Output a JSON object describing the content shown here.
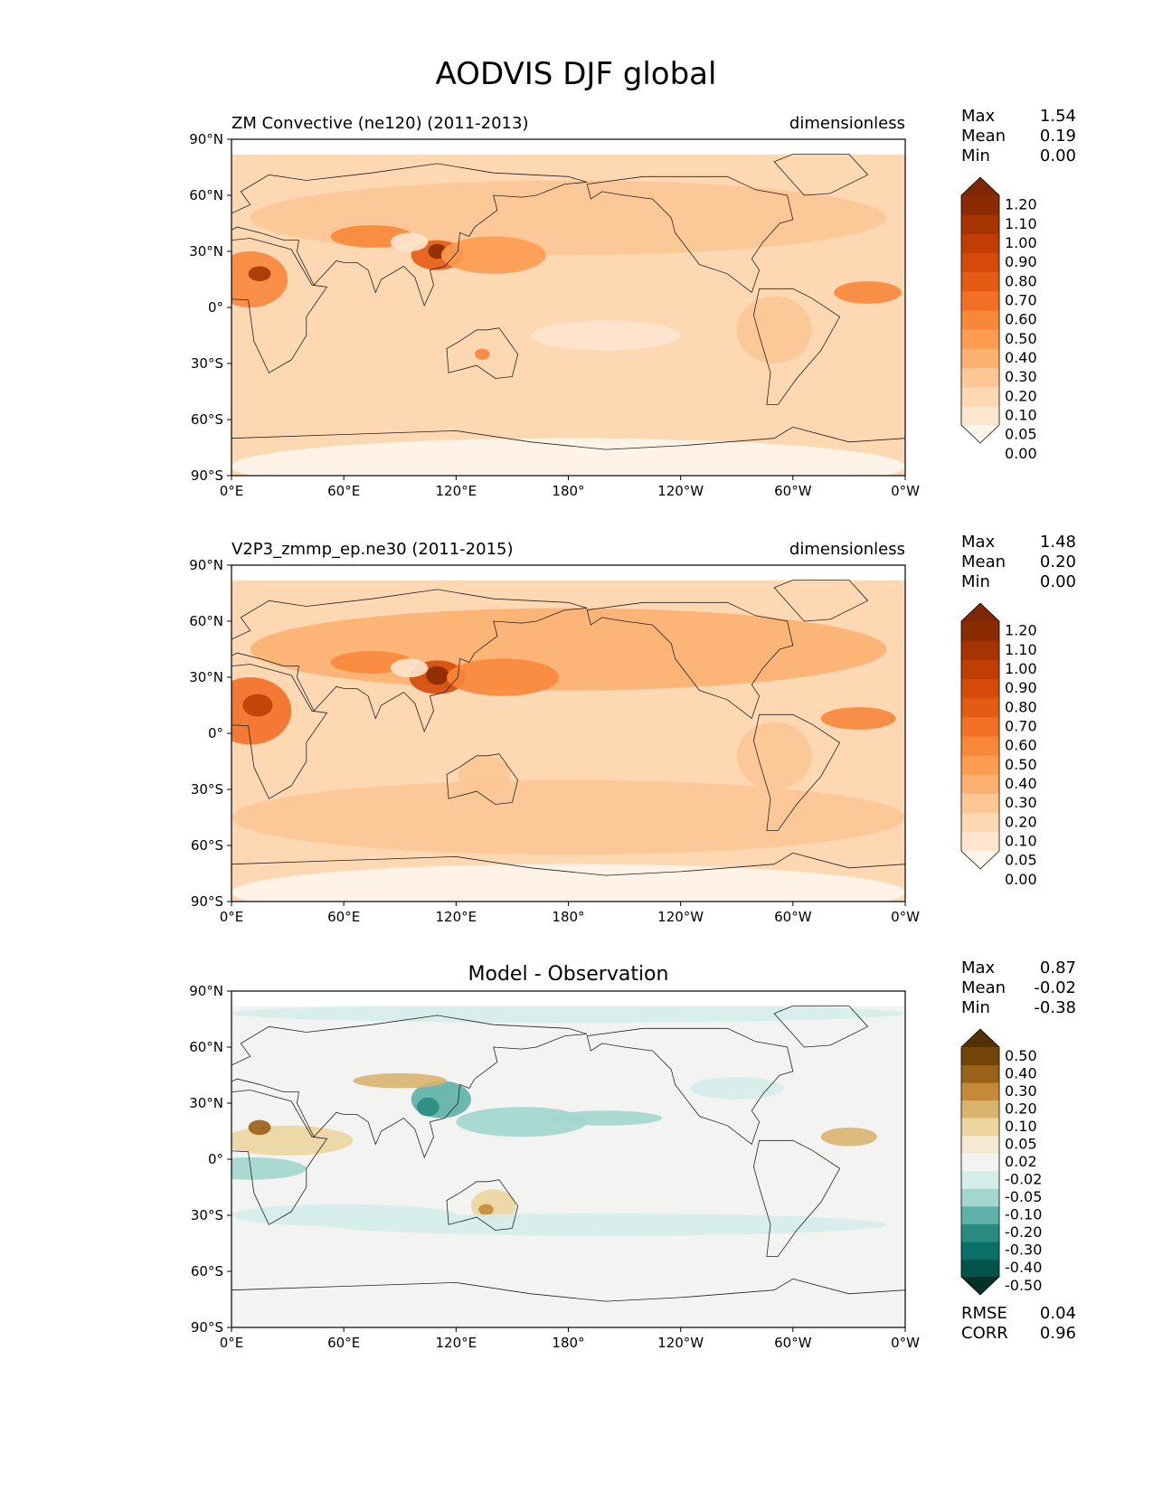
{
  "figure": {
    "title": "AODVIS DJF global"
  },
  "chart_data": [
    {
      "type": "heatmap",
      "title": "ZM Convective (ne120) (2011-2013)",
      "units": "dimensionless",
      "stats": [
        {
          "label": "Max",
          "value": "1.54"
        },
        {
          "label": "Mean",
          "value": "0.19"
        },
        {
          "label": "Min",
          "value": "0.00"
        }
      ],
      "xlim": [
        0,
        360
      ],
      "ylim": [
        -90,
        90
      ],
      "x_ticks": [
        "0°E",
        "60°E",
        "120°E",
        "180°",
        "120°W",
        "60°W",
        "0°W"
      ],
      "y_ticks": [
        "90°N",
        "60°N",
        "30°N",
        "0°",
        "30°S",
        "60°S",
        "90°S"
      ],
      "colorbar_levels": [
        "1.20",
        "1.10",
        "1.00",
        "0.90",
        "0.80",
        "0.70",
        "0.60",
        "0.50",
        "0.40",
        "0.30",
        "0.20",
        "0.10",
        "0.05",
        "0.00"
      ],
      "colors": [
        "#fff5eb",
        "#fee6ce",
        "#fdd8b3",
        "#fdc795",
        "#fdb170",
        "#fd9c51",
        "#f8873a",
        "#f26f26",
        "#e45b13",
        "#d54a08",
        "#c03e04",
        "#a63403",
        "#8a2b04",
        "#7f2704"
      ]
    },
    {
      "type": "heatmap",
      "title": "V2P3_zmmp_ep.ne30 (2011-2015)",
      "units": "dimensionless",
      "stats": [
        {
          "label": "Max",
          "value": "1.48"
        },
        {
          "label": "Mean",
          "value": "0.20"
        },
        {
          "label": "Min",
          "value": "0.00"
        }
      ],
      "xlim": [
        0,
        360
      ],
      "ylim": [
        -90,
        90
      ],
      "x_ticks": [
        "0°E",
        "60°E",
        "120°E",
        "180°",
        "120°W",
        "60°W",
        "0°W"
      ],
      "y_ticks": [
        "90°N",
        "60°N",
        "30°N",
        "0°",
        "30°S",
        "60°S",
        "90°S"
      ],
      "colorbar_levels": [
        "1.20",
        "1.10",
        "1.00",
        "0.90",
        "0.80",
        "0.70",
        "0.60",
        "0.50",
        "0.40",
        "0.30",
        "0.20",
        "0.10",
        "0.05",
        "0.00"
      ],
      "colors": [
        "#fff5eb",
        "#fee6ce",
        "#fdd8b3",
        "#fdc795",
        "#fdb170",
        "#fd9c51",
        "#f8873a",
        "#f26f26",
        "#e45b13",
        "#d54a08",
        "#c03e04",
        "#a63403",
        "#8a2b04",
        "#7f2704"
      ]
    },
    {
      "type": "heatmap",
      "title": "Model - Observation",
      "units": "",
      "stats": [
        {
          "label": "Max",
          "value": "0.87"
        },
        {
          "label": "Mean",
          "value": "-0.02"
        },
        {
          "label": "Min",
          "value": "-0.38"
        }
      ],
      "metrics": [
        {
          "label": "RMSE",
          "value": "0.04"
        },
        {
          "label": "CORR",
          "value": "0.96"
        }
      ],
      "xlim": [
        0,
        360
      ],
      "ylim": [
        -90,
        90
      ],
      "x_ticks": [
        "0°E",
        "60°E",
        "120°E",
        "180°",
        "120°W",
        "60°W",
        "0°W"
      ],
      "y_ticks": [
        "90°N",
        "60°N",
        "30°N",
        "0°",
        "30°S",
        "60°S",
        "90°S"
      ],
      "colorbar_levels": [
        "0.50",
        "0.40",
        "0.30",
        "0.20",
        "0.10",
        "0.05",
        "0.02",
        "-0.02",
        "-0.05",
        "-0.10",
        "-0.20",
        "-0.30",
        "-0.40",
        "-0.50"
      ],
      "colors": [
        "#00322a",
        "#01544a",
        "#0b7067",
        "#2a8c80",
        "#5eb1a6",
        "#a2d6ce",
        "#d4ede9",
        "#f3f4f2",
        "#f4ead3",
        "#ecd59f",
        "#d9b46e",
        "#c48a3a",
        "#9a6118",
        "#744509",
        "#543005"
      ]
    }
  ]
}
